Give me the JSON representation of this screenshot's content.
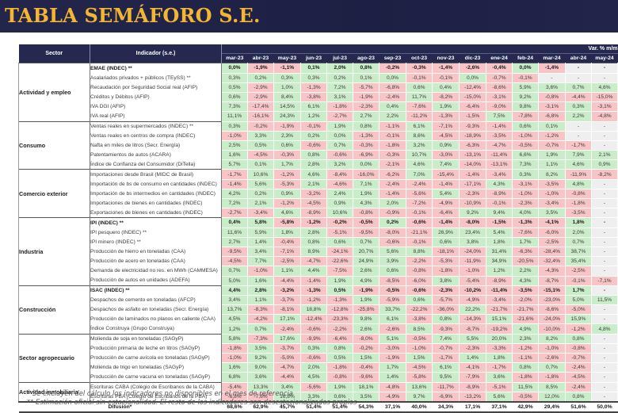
{
  "title": "TABLA SEMÁFORO S.E.",
  "headers": {
    "sector": "Sector",
    "indicador": "Indicador (s.e.)",
    "var": "Var. % m/m",
    "months": [
      "mar-23",
      "abr-23",
      "may-23",
      "jun-23",
      "jul-23",
      "ago-23",
      "sep-23",
      "oct-23",
      "nov-23",
      "dic-23",
      "ene-24",
      "feb-24",
      "mar-24",
      "abr-24",
      "may-24"
    ]
  },
  "sectors": [
    {
      "name": "Actividad y empleo",
      "rows": [
        {
          "label": "EMAE (INDEC) **",
          "bold": true,
          "values": [
            "0,0%",
            "-1,9%",
            "-1,1%",
            "0,1%",
            "2,0%",
            "0,8%",
            "-0,2%",
            "-0,3%",
            "-1,4%",
            "-2,6%",
            "-0,4%",
            "0,0%",
            "-1,4%",
            "-",
            "-"
          ]
        },
        {
          "label": "Asalariados privados + públicos (TEySS) **",
          "values": [
            "0,3%",
            "0,2%",
            "0,3%",
            "0,3%",
            "0,2%",
            "0,1%",
            "0,0%",
            "-0,1%",
            "-0,1%",
            "0,0%",
            "-0,7%",
            "-0,1%",
            "-",
            "-",
            "-"
          ]
        },
        {
          "label": "Recaudación por Seguridad Social real (AFIP)",
          "values": [
            "0,5%",
            "-2,9%",
            "1,0%",
            "-1,3%",
            "7,2%",
            "-5,7%",
            "-6,8%",
            "0,6%",
            "0,4%",
            "-12,4%",
            "-8,6%",
            "5,9%",
            "3,6%",
            "0,7%",
            "4,6%"
          ]
        },
        {
          "label": "Créditos y Débitos (AFIP)",
          "values": [
            "0,6%",
            "-2,9%",
            "8,4%",
            "-3,8%",
            "3,1%",
            "-1,9%",
            "-2,4%",
            "11,7%",
            "-8,2%",
            "-15,0%",
            "-3,1%",
            "9,2%",
            "-0,8%",
            "-4,4%",
            "-15,0%"
          ]
        },
        {
          "label": "IVA DGI (AFIP)",
          "values": [
            "7,3%",
            "-17,4%",
            "14,5%",
            "6,1%",
            "-1,8%",
            "-2,3%",
            "0,4%",
            "-7,6%",
            "1,9%",
            "-6,4%",
            "-9,0%",
            "9,8%",
            "-3,1%",
            "0,3%",
            "-3,1%"
          ]
        },
        {
          "label": "IVA real (AFIP)",
          "values": [
            "11,1%",
            "-16,1%",
            "24,3%",
            "1,2%",
            "-2,7%",
            "2,7%",
            "2,2%",
            "-11,2%",
            "-1,3%",
            "-1,5%",
            "7,5%",
            "-7,8%",
            "-6,8%",
            "2,2%",
            "-4,8%"
          ]
        }
      ]
    },
    {
      "name": "Consumo",
      "rows": [
        {
          "label": "Ventas reales en supermercados (INDEC) **",
          "values": [
            "0,3%",
            "-0,2%",
            "-1,9%",
            "-0,1%",
            "1,9%",
            "0,8%",
            "-1,1%",
            "6,1%",
            "-7,1%",
            "-9,3%",
            "-1,4%",
            "0,6%",
            "0,1%",
            "-",
            "-"
          ]
        },
        {
          "label": "Ventas reales en centros de compra (INDEC)",
          "values": [
            "-1,0%",
            "3,3%",
            "2,3%",
            "0,2%",
            "0,0%",
            "-1,3%",
            "-0,1%",
            "8,6%",
            "-4,5%",
            "-18,9%",
            "-3,5%",
            "-1,0%",
            "-1,2%",
            "-",
            "-"
          ]
        },
        {
          "label": "Nafta en miles de litros (Secr. Energía)",
          "values": [
            "2,5%",
            "0,5%",
            "0,6%",
            "-0,6%",
            "0,7%",
            "-0,3%",
            "-1,8%",
            "3,2%",
            "0,9%",
            "-6,3%",
            "-4,7%",
            "-0,5%",
            "-0,7%",
            "-1,7%",
            "-"
          ]
        },
        {
          "label": "Patentamientos de autos (ACARA)",
          "values": [
            "1,6%",
            "-4,5%",
            "-0,3%",
            "0,8%",
            "-0,6%",
            "-6,9%",
            "-0,3%",
            "10,7%",
            "-3,0%",
            "-13,1%",
            "-11,4%",
            "6,6%",
            "1,9%",
            "7,9%",
            "2,1%"
          ]
        },
        {
          "label": "Índice de Confianza del Consumidor (DiTella)",
          "values": [
            "5,7%",
            "0,1%",
            "1,7%",
            "2,8%",
            "3,2%",
            "0,0%",
            "-2,1%",
            "4,6%",
            "7,4%",
            "-14,0%",
            "-13,1%",
            "7,3%",
            "1,1%",
            "4,6%",
            "0,9%"
          ]
        }
      ]
    },
    {
      "name": "Comercio exterior",
      "rows": [
        {
          "label": "Importaciones desde Brasil (MIDC de Brasil)",
          "values": [
            "-1,7%",
            "10,6%",
            "-1,2%",
            "4,6%",
            "-8,4%",
            "-16,0%",
            "-6,2%",
            "7,0%",
            "-15,4%",
            "-1,4%",
            "-3,4%",
            "0,3%",
            "8,2%",
            "-11,9%",
            "-8,2%"
          ]
        },
        {
          "label": "Importación de bs de consumo en cantidades (INDEC)",
          "values": [
            "-1,4%",
            "5,6%",
            "-5,3%",
            "2,1%",
            "-4,6%",
            "7,1%",
            "-2,4%",
            "-2,4%",
            "-1,4%",
            "-17,1%",
            "4,3%",
            "-3,1%",
            "-3,5%",
            "4,8%",
            "-"
          ]
        },
        {
          "label": "Importación de bs intermedios en cantidades (INDEC)",
          "values": [
            "4,2%",
            "0,2%",
            "0,9%",
            "-3,2%",
            "2,4%",
            "1,9%",
            "-1,4%",
            "-5,6%",
            "5,4%",
            "-2,3%",
            "-8,9%",
            "-1,0%",
            "-1,0%",
            "-0,8%",
            "-"
          ]
        },
        {
          "label": "Importaciones de bienes en cantidades (INDEC)",
          "values": [
            "7,2%",
            "2,1%",
            "-1,2%",
            "-4,5%",
            "0,9%",
            "4,3%",
            "2,0%",
            "-7,2%",
            "-4,9%",
            "-10,9%",
            "-0,1%",
            "-2,3%",
            "-3,4%",
            "-1,8%",
            "-"
          ]
        },
        {
          "label": "Exportaciones de bienes en cantidades (INDEC)",
          "values": [
            "-2,7%",
            "-3,4%",
            "4,6%",
            "-8,9%",
            "10,6%",
            "-0,8%",
            "-0,9%",
            "-0,1%",
            "-6,4%",
            "9,2%",
            "9,4%",
            "4,0%",
            "3,5%",
            "-3,5%",
            "-"
          ]
        }
      ]
    },
    {
      "name": "Industria",
      "rows": [
        {
          "label": "IPI (INDEC) **",
          "bold": true,
          "values": [
            "0,4%",
            "5,8%",
            "-5,8%",
            "-1,2%",
            "-0,2%",
            "-0,5%",
            "0,2%",
            "-0,6%",
            "-1,4%",
            "-8,0%",
            "-1,5%",
            "-1,3%",
            "-4,1%",
            "1,8%",
            "-"
          ]
        },
        {
          "label": "IPI pesquero (INDEC) **",
          "values": [
            "11,6%",
            "5,9%",
            "1,8%",
            "2,8%",
            "-5,1%",
            "-9,5%",
            "-8,0%",
            "-21,1%",
            "26,9%",
            "23,4%",
            "5,4%",
            "-7,6%",
            "-6,0%",
            "2,0%",
            "-"
          ]
        },
        {
          "label": "IPI minero (INDEC) **",
          "values": [
            "2,7%",
            "1,4%",
            "-0,4%",
            "0,8%",
            "0,6%",
            "0,7%",
            "-0,6%",
            "-0,1%",
            "0,6%",
            "3,8%",
            "1,8%",
            "1,7%",
            "-2,5%",
            "0,7%",
            "-"
          ]
        },
        {
          "label": "Producción de hierro en toneladas (CAA)",
          "values": [
            "-9,5%",
            "3,4%",
            "-7,1%",
            "8,9%",
            "-24,1%",
            "20,7%",
            "5,6%",
            "8,8%",
            "-18,1%",
            "-24,0%",
            "31,4%",
            "-6,3%",
            "-28,4%",
            "38,7%",
            "-"
          ]
        },
        {
          "label": "Producción de acero en toneladas (CAA)",
          "values": [
            "-4,5%",
            "7,7%",
            "-2,5%",
            "-4,7%",
            "-22,6%",
            "24,9%",
            "3,9%",
            "-2,2%",
            "-5,3%",
            "-11,9%",
            "34,9%",
            "-20,5%",
            "-32,4%",
            "35,4%",
            "-"
          ]
        },
        {
          "label": "Demanda de electricidad no res. en MWh (CAMMESA)",
          "values": [
            "0,7%",
            "-1,0%",
            "1,1%",
            "4,4%",
            "-7,5%",
            "2,6%",
            "0,6%",
            "-0,8%",
            "-1,8%",
            "-1,0%",
            "1,2%",
            "2,2%",
            "-4,3%",
            "-2,5%",
            "-"
          ]
        },
        {
          "label": "Producción de autos en unidades (ADEFA)",
          "values": [
            "5,0%",
            "1,6%",
            "-4,4%",
            "-1,4%",
            "1,9%",
            "4,9%",
            "-8,5%",
            "-6,0%",
            "3,8%",
            "-5,4%",
            "-8,9%",
            "4,3%",
            "-8,7%",
            "-0,1%",
            "-7,1%"
          ]
        }
      ]
    },
    {
      "name": "Construcción",
      "rows": [
        {
          "label": "ISAC (INDEC) **",
          "bold": true,
          "values": [
            "4,4%",
            "2,8%",
            "-3,2%",
            "-1,3%",
            "0,5%",
            "-1,9%",
            "-0,5%",
            "-0,6%",
            "-2,3%",
            "-10,2%",
            "-11,4%",
            "-3,5%",
            "-15,1%",
            "1,7%",
            "-"
          ]
        },
        {
          "label": "Despachos de cemento en toneladas (AFCP)",
          "values": [
            "3,4%",
            "1,1%",
            "-3,7%",
            "-1,2%",
            "-1,3%",
            "1,9%",
            "-5,9%",
            "0,6%",
            "-5,7%",
            "-4,9%",
            "-3,4%",
            "-2,0%",
            "-23,0%",
            "5,0%",
            "11,5%"
          ]
        },
        {
          "label": "Despachos de asfalto en toneladas (Secr. Energía)",
          "values": [
            "13,7%",
            "-8,3%",
            "-8,1%",
            "18,8%",
            "-12,8%",
            "-25,8%",
            "33,7%",
            "-22,2%",
            "-36,0%",
            "22,2%",
            "-21,7%",
            "-21,7%",
            "-8,6%",
            "-5,0%",
            "-"
          ]
        },
        {
          "label": "Producción de laminados no planos en caliente (CAA)",
          "values": [
            "4,5%",
            "-4,2%",
            "17,1%",
            "-12,4%",
            "-23,3%",
            "9,8%",
            "6,1%",
            "-3,8%",
            "0,8%",
            "-14,3%",
            "15,1%",
            "-21,6%",
            "-24,0%",
            "15,9%",
            "-"
          ]
        },
        {
          "label": "Índice Construya (Grupo Construya)",
          "values": [
            "1,2%",
            "0,7%",
            "-2,4%",
            "-0,6%",
            "-2,2%",
            "2,6%",
            "-2,6%",
            "8,5%",
            "-9,3%",
            "-8,7%",
            "-19,2%",
            "4,9%",
            "-10,0%",
            "-1,2%",
            "4,8%"
          ]
        }
      ]
    },
    {
      "name": "Sector agropecuario",
      "rows": [
        {
          "label": "Molienda de soja en toneladas (SAGyP)",
          "values": [
            "5,8%",
            "-7,3%",
            "17,6%",
            "-9,9%",
            "-6,4%",
            "-8,0%",
            "5,1%",
            "-0,5%",
            "7,4%",
            "5,5%",
            "20,0%",
            "2,3%",
            "8,2%",
            "0,8%",
            "-"
          ]
        },
        {
          "label": "Producción primaria de leche en litros (SAGyP)",
          "values": [
            "-1,8%",
            "3,5%",
            "-3,7%",
            "0,3%",
            "0,8%",
            "-0,2%",
            "-3,0%",
            "-1,0%",
            "-0,7%",
            "-2,3%",
            "-3,3%",
            "-1,2%",
            "-1,0%",
            "-0,8%",
            "-"
          ]
        },
        {
          "label": "Producción de carne avícola en toneladas (SAGyP)",
          "values": [
            "-1,0%",
            "9,2%",
            "-5,0%",
            "-0,6%",
            "0,5%",
            "1,5%",
            "-1,9%",
            "1,5%",
            "-1,7%",
            "1,4%",
            "1,8%",
            "-1,1%",
            "-2,6%",
            "-0,7%",
            "-"
          ]
        },
        {
          "label": "Molienda de trigo en toneladas (SAGyP)",
          "values": [
            "1,6%",
            "9,0%",
            "-4,7%",
            "2,0%",
            "-1,8%",
            "-0,4%",
            "1,7%",
            "-4,5%",
            "6,1%",
            "-4,1%",
            "-1,7%",
            "0,8%",
            "0,7%",
            "-2,4%",
            "-"
          ]
        },
        {
          "label": "Producción de carne vacuna en toneladas (SAGyP)",
          "values": [
            "6,8%",
            "3,6%",
            "-4,4%",
            "4,5%",
            "-0,8%",
            "-9,6%",
            "1,4%",
            "-5,8%",
            "9,5%",
            "-7,9%",
            "3,6%",
            "-1,8%",
            "-1,8%",
            "-4,5%",
            "-"
          ]
        }
      ]
    },
    {
      "name": "Actividad inmobiliaria",
      "rows": [
        {
          "label": "Escrituras CABA (Colegio de Escribanos de la CABA)",
          "values": [
            "-5,4%",
            "13,3%",
            "3,4%",
            "-5,6%",
            "1,9%",
            "18,1%",
            "-4,8%",
            "13,6%",
            "-11,7%",
            "-8,9%",
            "-5,1%",
            "11,5%",
            "8,5%",
            "-2,4%",
            "-"
          ]
        },
        {
          "label": "Escrituras PBA (Colegio de Escribanos de la PBA)",
          "values": [
            "-6,8%",
            "-7,6%",
            "16,8%",
            "3,3%",
            "0,6%",
            "3,5%",
            "-4,9%",
            "9,7%",
            "-6,9%",
            "-13,2%",
            "5,6%",
            "-0,5%",
            "12,0%",
            "0,8%",
            "-"
          ]
        }
      ]
    }
  ],
  "difusion": {
    "label": "Difusión*",
    "values": [
      "68,6%",
      "62,9%",
      "45,7%",
      "51,4%",
      "51,4%",
      "54,3%",
      "37,1%",
      "40,0%",
      "34,3%",
      "17,1%",
      "37,1%",
      "42,9%",
      "29,4%",
      "51,6%",
      "50,0%"
    ]
  },
  "notes": [
    "* Se excluyen del cálculo los indicadores no disponibles en el mes de referencia",
    "** Estimación oficial sin estacionalidad. El resto de los indicadores son desestacionalizados propios"
  ],
  "colors": {
    "positive": "#c9ecc9",
    "negative": "#f8c4c6",
    "not_available": "#efefef",
    "header": "#25284f",
    "title": "#f2b632"
  }
}
